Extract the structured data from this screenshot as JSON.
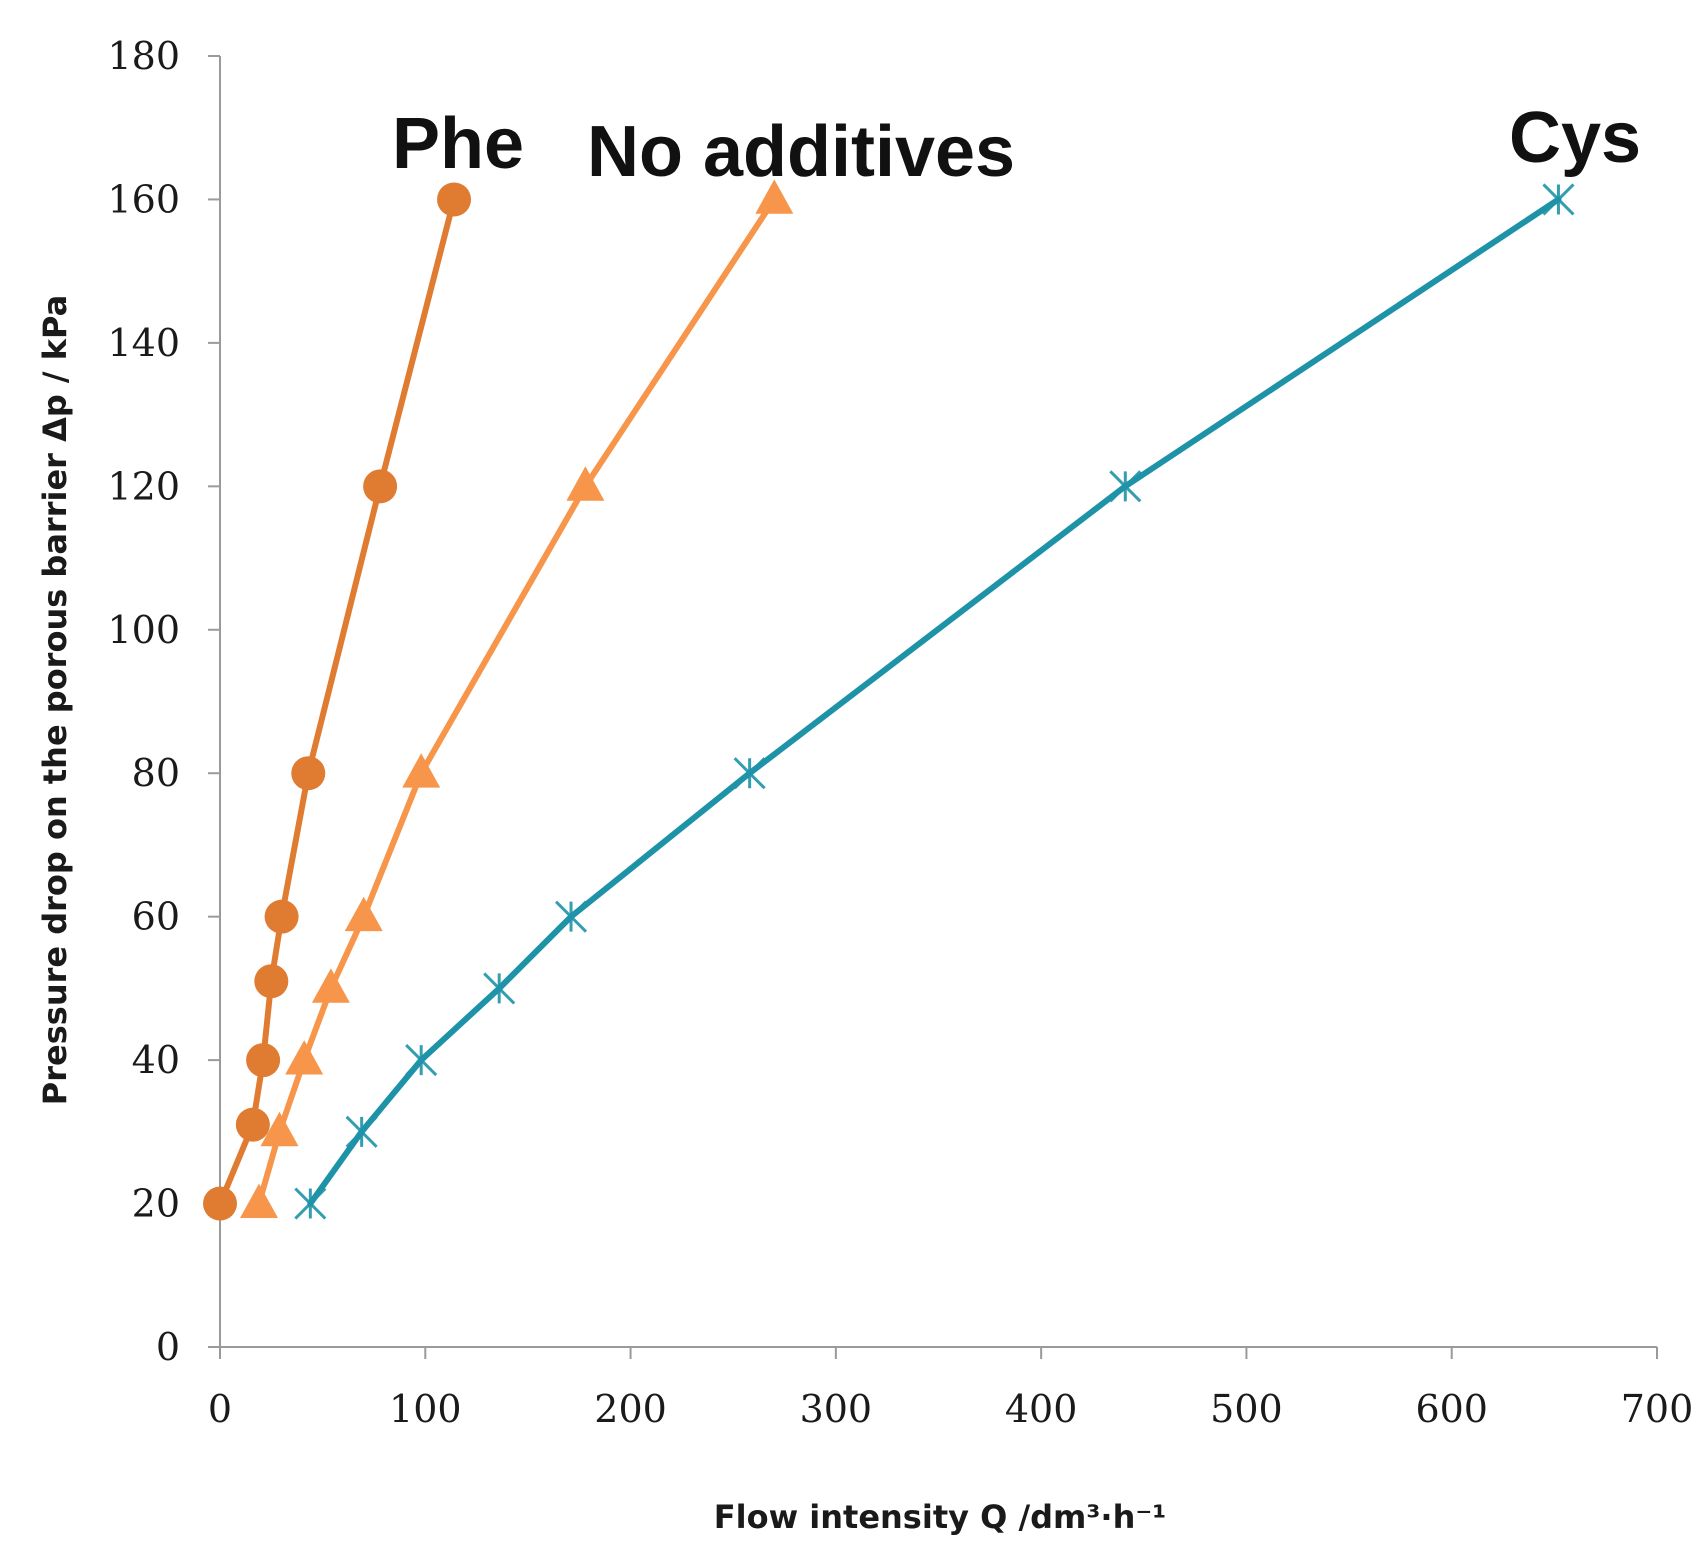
{
  "chart_data": {
    "type": "line",
    "title": "",
    "xlabel": "Flow intensity Q /dm³·h⁻¹",
    "ylabel": "Pressure drop on the porous barrier Δp / kPa",
    "xlim": [
      0,
      700
    ],
    "ylim": [
      0,
      180
    ],
    "x_ticks": [
      0,
      100,
      200,
      300,
      400,
      500,
      600,
      700
    ],
    "y_ticks": [
      0,
      20,
      40,
      60,
      80,
      100,
      120,
      140,
      160,
      180
    ],
    "x_tick_labels": [
      "0",
      "100",
      "200",
      "300",
      "400",
      "500",
      "600",
      "700"
    ],
    "y_tick_labels": [
      "0",
      "20",
      "40",
      "60",
      "80",
      "100",
      "120",
      "140",
      "160",
      "180"
    ],
    "grid": false,
    "legend": "none (series labelled directly near line ends)",
    "series": [
      {
        "name": "Phe",
        "color": "#E07B32",
        "marker": "circle",
        "x": [
          0,
          16,
          21,
          25,
          30,
          43,
          78,
          114
        ],
        "y": [
          20,
          31,
          40,
          51,
          60,
          80,
          120,
          160
        ]
      },
      {
        "name": "No additives",
        "color": "#F7964A",
        "marker": "triangle",
        "x": [
          19,
          29,
          41,
          54,
          70,
          98,
          178,
          270
        ],
        "y": [
          20,
          30,
          40,
          50,
          60,
          80,
          120,
          160
        ]
      },
      {
        "name": "Cys",
        "color": "#1E93A8",
        "marker": "asterisk",
        "x": [
          44,
          69,
          98,
          136,
          171,
          258,
          441,
          652
        ],
        "y": [
          20,
          30,
          40,
          50,
          60,
          80,
          120,
          160
        ]
      }
    ]
  }
}
